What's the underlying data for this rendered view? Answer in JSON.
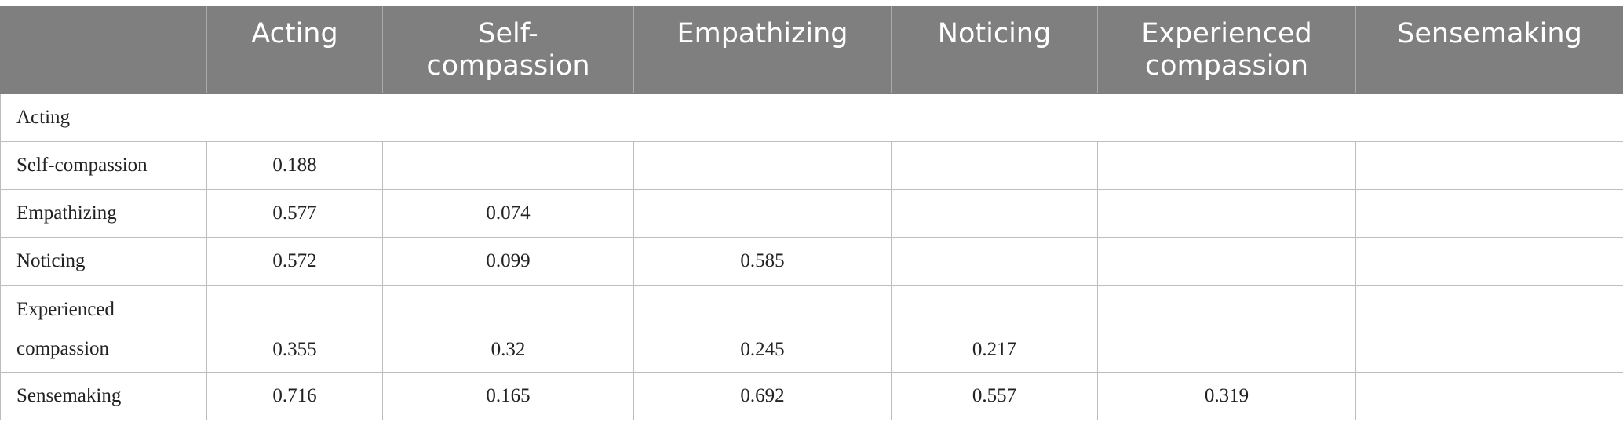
{
  "table": {
    "headers": [
      "",
      "Acting",
      "Self-compassion",
      "Empathizing",
      "Noticing",
      "Experienced compassion",
      "Sensemaking"
    ],
    "rows": [
      {
        "label": "Acting",
        "cells": [
          "",
          "",
          "",
          "",
          "",
          ""
        ]
      },
      {
        "label": "Self-compassion",
        "cells": [
          "0.188",
          "",
          "",
          "",
          "",
          ""
        ]
      },
      {
        "label": "Empathizing",
        "cells": [
          "0.577",
          "0.074",
          "",
          "",
          "",
          ""
        ]
      },
      {
        "label": "Noticing",
        "cells": [
          "0.572",
          "0.099",
          "0.585",
          "",
          "",
          ""
        ]
      },
      {
        "label": "Experienced compassion",
        "cells": [
          "0.355",
          "0.32",
          "0.245",
          "0.217",
          "",
          ""
        ]
      },
      {
        "label": "Sensemaking",
        "cells": [
          "0.716",
          "0.165",
          "0.692",
          "0.557",
          "0.319",
          ""
        ]
      }
    ]
  },
  "colors": {
    "header_background": "#7e7f7e",
    "header_text": "#ffffff",
    "grid_line": "#bdbdbd"
  }
}
